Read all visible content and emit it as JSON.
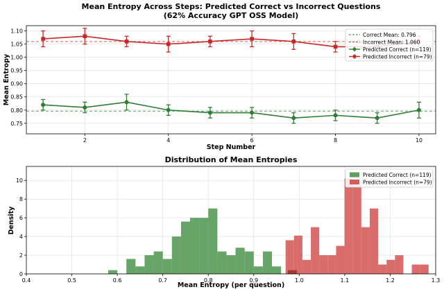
{
  "top_title_line1": "Mean Entropy Across Steps: Predicted Correct vs Incorrect Questions",
  "top_title_line2": "(62% Accuracy GPT OSS Model)",
  "bottom_title": "Distribution of Mean Entropies",
  "colors": {
    "correct": "#2e7d32",
    "incorrect": "#c62828",
    "correct_hist": "#5f9f5f",
    "incorrect_hist": "#d65c5c",
    "overlap_hist": "#a33a30"
  },
  "chart_data": [
    {
      "type": "line",
      "title": "Mean Entropy Across Steps: Predicted Correct vs Incorrect Questions (62% Accuracy GPT OSS Model)",
      "xlabel": "Step Number",
      "ylabel": "Mean Entropy",
      "xlim": [
        0.6,
        10.4
      ],
      "ylim": [
        0.71,
        1.12
      ],
      "xticks": [
        2,
        4,
        6,
        8,
        10
      ],
      "yticks": [
        0.75,
        0.8,
        0.85,
        0.9,
        0.95,
        1.0,
        1.05,
        1.1
      ],
      "grid": true,
      "legend_position": "top-right",
      "x": [
        1,
        2,
        3,
        4,
        5,
        6,
        7,
        8,
        9,
        10
      ],
      "series": [
        {
          "name": "Predicted Correct (n=119)",
          "color_key": "correct",
          "values": [
            0.82,
            0.81,
            0.83,
            0.8,
            0.79,
            0.79,
            0.77,
            0.78,
            0.77,
            0.8
          ],
          "errors": [
            0.02,
            0.02,
            0.03,
            0.02,
            0.02,
            0.02,
            0.02,
            0.02,
            0.02,
            0.03
          ]
        },
        {
          "name": "Predicted Incorrect (n=79)",
          "color_key": "incorrect",
          "values": [
            1.07,
            1.08,
            1.06,
            1.05,
            1.06,
            1.07,
            1.06,
            1.04,
            1.04,
            1.06
          ],
          "errors": [
            0.03,
            0.03,
            0.02,
            0.03,
            0.02,
            0.03,
            0.03,
            0.02,
            0.02,
            0.02
          ]
        }
      ],
      "reference_lines": [
        {
          "name": "Correct Mean: 0.796",
          "value": 0.796,
          "color_key": "correct"
        },
        {
          "name": "Incorrect Mean: 1.060",
          "value": 1.06,
          "color_key": "incorrect"
        }
      ]
    },
    {
      "type": "bar",
      "title": "Distribution of Mean Entropies",
      "xlabel": "Mean Entropy (per question)",
      "ylabel": "Density",
      "xlim": [
        0.4,
        1.3
      ],
      "ylim": [
        0,
        11.5
      ],
      "xticks": [
        0.4,
        0.5,
        0.6,
        0.7,
        0.8,
        0.9,
        1.0,
        1.1,
        1.2,
        1.3
      ],
      "yticks": [
        0,
        2,
        4,
        6,
        8,
        10
      ],
      "grid": true,
      "legend_position": "top-right",
      "series": [
        {
          "name": "Predicted Correct (n=119)",
          "color_key": "correct_hist",
          "bin_start": 0.58,
          "bin_width": 0.02,
          "values": [
            0.4,
            0,
            1.6,
            0.8,
            2.0,
            2.4,
            1.6,
            4.0,
            5.6,
            6.0,
            6.0,
            7.0,
            2.4,
            2.0,
            2.8,
            2.4,
            0.8,
            2.4,
            0.8,
            0
          ]
        },
        {
          "name": "Predicted Incorrect (n=79)",
          "color_key": "incorrect_hist",
          "bin_start": 0.97,
          "bin_width": 0.0185,
          "values": [
            3.6,
            4.1,
            1.5,
            5.0,
            2.0,
            2.0,
            3.0,
            10.2,
            9.5,
            5.0,
            7.0,
            1.0,
            1.5,
            2.0,
            0.0,
            1.0,
            1.0
          ]
        }
      ]
    }
  ]
}
